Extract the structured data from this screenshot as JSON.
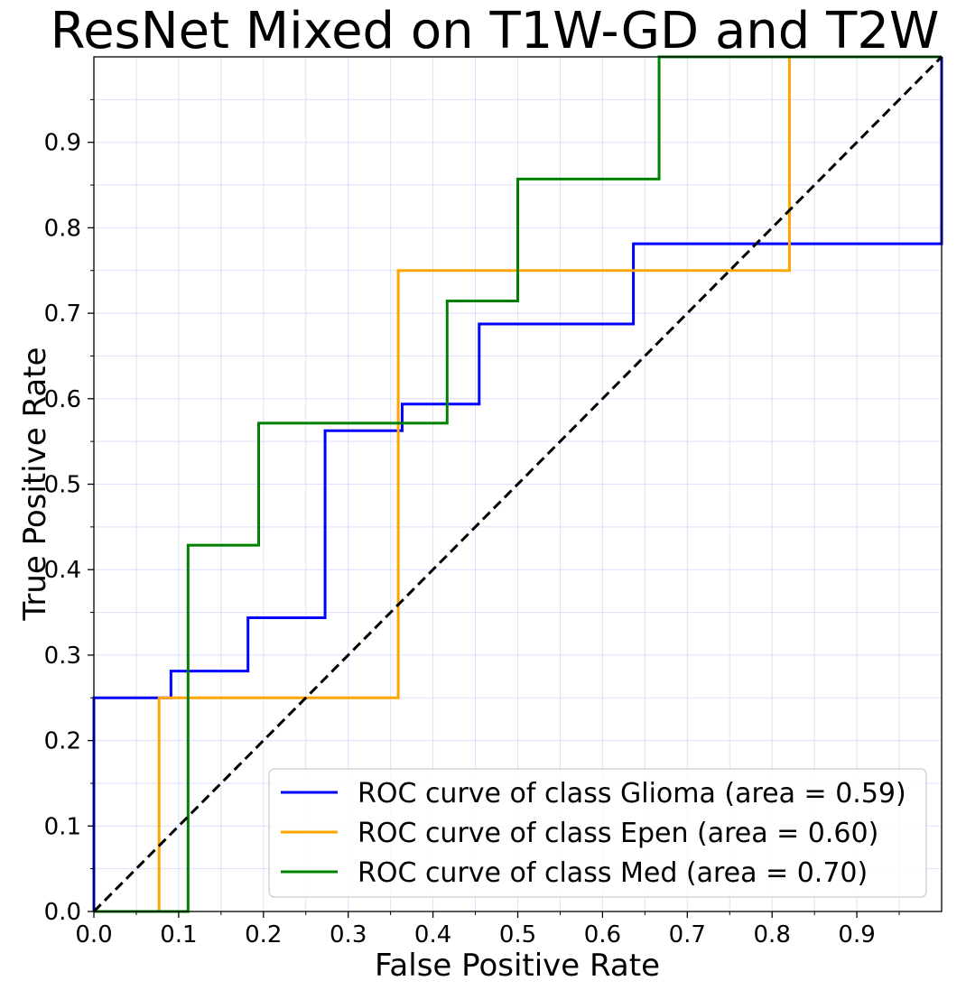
{
  "chart_data": {
    "type": "line",
    "title": "ResNet Mixed on T1W-GD and T2W",
    "xlabel": "False Positive Rate",
    "ylabel": "True Positive Rate",
    "xlim": [
      0,
      1
    ],
    "ylim": [
      0,
      1
    ],
    "grid": true,
    "legend_position": "lower-right",
    "x_ticks": [
      "0.0",
      "0.1",
      "0.2",
      "0.3",
      "0.4",
      "0.5",
      "0.6",
      "0.7",
      "0.8",
      "0.9"
    ],
    "y_ticks": [
      "0.0",
      "0.1",
      "0.2",
      "0.3",
      "0.4",
      "0.5",
      "0.6",
      "0.7",
      "0.8",
      "0.9"
    ],
    "series": [
      {
        "name": "ROC curve of class Glioma (area = 0.59)",
        "color": "#0000ff",
        "x": [
          0.0,
          0.0,
          0.0909,
          0.0909,
          0.1818,
          0.1818,
          0.2727,
          0.2727,
          0.3636,
          0.3636,
          0.4545,
          0.4545,
          0.6364,
          0.6364,
          1.0,
          1.0
        ],
        "y": [
          0.0,
          0.25,
          0.25,
          0.28125,
          0.28125,
          0.34375,
          0.34375,
          0.5625,
          0.5625,
          0.59375,
          0.59375,
          0.6875,
          0.6875,
          0.78125,
          0.78125,
          1.0
        ]
      },
      {
        "name": "ROC curve of class Epen (area = 0.60)",
        "color": "#ffa500",
        "x": [
          0.0,
          0.0769,
          0.0769,
          0.359,
          0.359,
          0.8205,
          0.8205,
          1.0
        ],
        "y": [
          0.0,
          0.0,
          0.25,
          0.25,
          0.75,
          0.75,
          1.0,
          1.0
        ]
      },
      {
        "name": "ROC curve of class Med (area = 0.70)",
        "color": "#008000",
        "x": [
          0.0,
          0.1111,
          0.1111,
          0.1944,
          0.1944,
          0.4167,
          0.4167,
          0.5,
          0.5,
          0.6667,
          0.6667,
          1.0
        ],
        "y": [
          0.0,
          0.0,
          0.4286,
          0.4286,
          0.5714,
          0.5714,
          0.7143,
          0.7143,
          0.8571,
          0.8571,
          1.0,
          1.0
        ]
      }
    ],
    "reference_line": {
      "x": [
        0,
        1
      ],
      "y": [
        0,
        1
      ],
      "color": "#000000",
      "style": "dashed"
    }
  }
}
